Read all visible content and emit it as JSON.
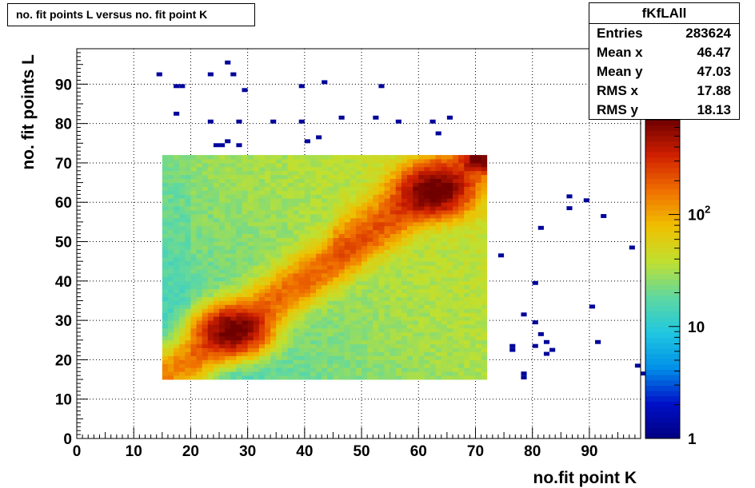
{
  "title": "no. fit points L versus no. fit point K",
  "stats": {
    "name": "fKfLAll",
    "rows": [
      {
        "label": "Entries",
        "value": "283624"
      },
      {
        "label": "Mean x",
        "value": "46.47"
      },
      {
        "label": "Mean y",
        "value": "47.03"
      },
      {
        "label": "RMS x",
        "value": "17.88"
      },
      {
        "label": "RMS y",
        "value": "18.13"
      }
    ]
  },
  "chart_data": {
    "type": "heatmap",
    "title": "no. fit points L versus no. fit point K",
    "xlabel": "no.fit point K",
    "ylabel": "no. fit points  L",
    "xlim": [
      0,
      99
    ],
    "ylim": [
      0,
      99
    ],
    "x_ticks": [
      "0",
      "10",
      "20",
      "30",
      "40",
      "50",
      "60",
      "70",
      "80",
      "90"
    ],
    "y_ticks": [
      "0",
      "10",
      "20",
      "30",
      "40",
      "50",
      "60",
      "70",
      "80",
      "90"
    ],
    "grid": true,
    "z_scale": "log",
    "zlim": [
      1,
      700
    ],
    "z_ticks": [
      "1",
      "10",
      "10^2"
    ],
    "dense_region": {
      "x_range": [
        15,
        72
      ],
      "y_range": [
        15,
        72
      ],
      "bin_size": 1,
      "peak_low": [
        27.5,
        27.5
      ],
      "peak_high": [
        63,
        63
      ],
      "peak_corner": [
        71,
        71
      ],
      "peak_value": 600
    },
    "sparse_points": [
      [
        14,
        92
      ],
      [
        17,
        89
      ],
      [
        18,
        89
      ],
      [
        17,
        82
      ],
      [
        23,
        92
      ],
      [
        26,
        95
      ],
      [
        27,
        92
      ],
      [
        29,
        88
      ],
      [
        23,
        80
      ],
      [
        28,
        80
      ],
      [
        24,
        74
      ],
      [
        25,
        74
      ],
      [
        26,
        75
      ],
      [
        28,
        74
      ],
      [
        34,
        80
      ],
      [
        39,
        89
      ],
      [
        39,
        80
      ],
      [
        43,
        90
      ],
      [
        40,
        75
      ],
      [
        42,
        76
      ],
      [
        46,
        81
      ],
      [
        52,
        81
      ],
      [
        53,
        89
      ],
      [
        56,
        80
      ],
      [
        62,
        80
      ],
      [
        63,
        77
      ],
      [
        65,
        81
      ],
      [
        74,
        46
      ],
      [
        76,
        23
      ],
      [
        76,
        22
      ],
      [
        78,
        31
      ],
      [
        78,
        16
      ],
      [
        78,
        15
      ],
      [
        80,
        39
      ],
      [
        80,
        29
      ],
      [
        80,
        23
      ],
      [
        81,
        53
      ],
      [
        81,
        26
      ],
      [
        82,
        24
      ],
      [
        82,
        21
      ],
      [
        83,
        22
      ],
      [
        86,
        61
      ],
      [
        86,
        58
      ],
      [
        89,
        60
      ],
      [
        90,
        33
      ],
      [
        91,
        24
      ],
      [
        92,
        56
      ],
      [
        97,
        48
      ],
      [
        98,
        18
      ],
      [
        99,
        16
      ]
    ],
    "colormap": [
      "#000080",
      "#0010c8",
      "#0090e8",
      "#20c8e0",
      "#60d8a0",
      "#c0e030",
      "#f0c000",
      "#f07000",
      "#d02000",
      "#700000"
    ]
  }
}
